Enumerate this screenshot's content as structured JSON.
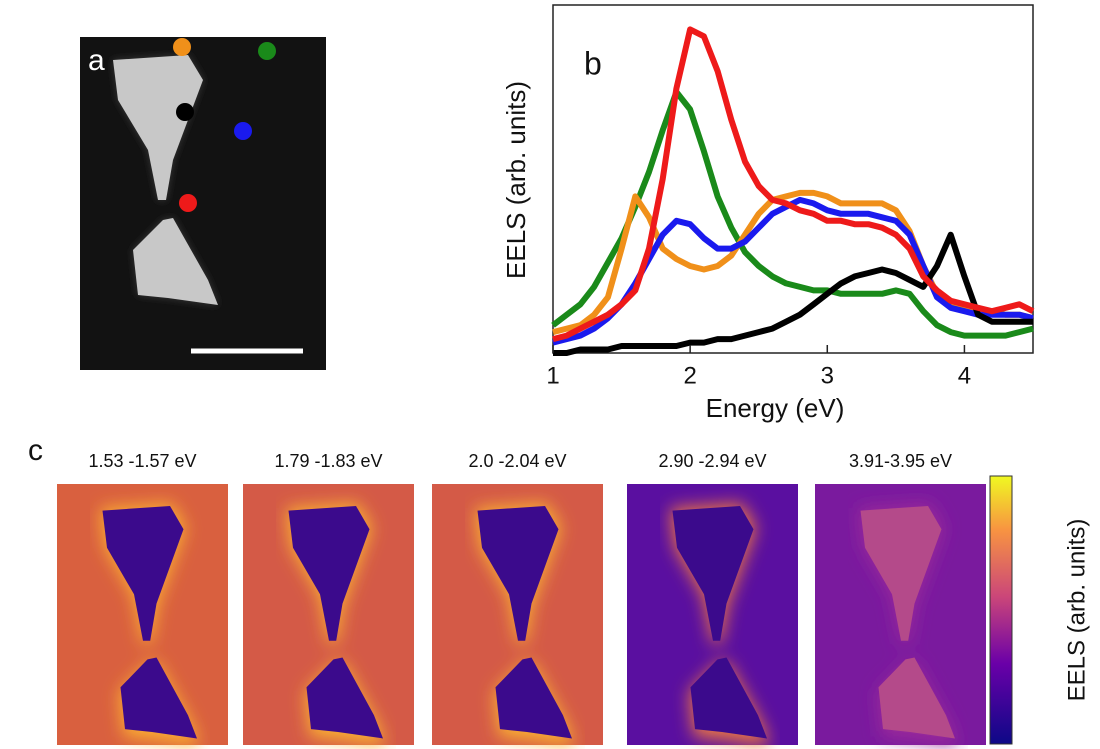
{
  "panel_labels": [
    "a",
    "b",
    "c"
  ],
  "maps": {
    "titles": [
      "1.53 -1.57 eV",
      "1.79 -1.83 eV",
      "2.0 -2.04 eV",
      "2.90 -2.94 eV",
      "3.91-3.95 eV"
    ],
    "colorbar_label": "EELS (arb. units)"
  },
  "chart_data": {
    "type": "line",
    "xlabel": "Energy (eV)",
    "ylabel": "EELS (arb. units)",
    "xlim": [
      1,
      4.5
    ],
    "xticks": [
      1,
      2,
      3,
      4
    ],
    "ylim": [
      0,
      1
    ],
    "x": [
      1,
      1.1,
      1.2,
      1.3,
      1.4,
      1.5,
      1.6,
      1.7,
      1.8,
      1.9,
      2,
      2.1,
      2.2,
      2.3,
      2.4,
      2.5,
      2.6,
      2.7,
      2.8,
      2.9,
      3,
      3.1,
      3.2,
      3.3,
      3.4,
      3.5,
      3.6,
      3.7,
      3.8,
      3.9,
      4,
      4.1,
      4.2,
      4.3,
      4.4,
      4.5
    ],
    "series": [
      {
        "color": "#1a8a1a",
        "values": [
          0.08,
          0.11,
          0.14,
          0.19,
          0.26,
          0.33,
          0.42,
          0.52,
          0.64,
          0.75,
          0.7,
          0.58,
          0.45,
          0.36,
          0.29,
          0.25,
          0.22,
          0.2,
          0.19,
          0.18,
          0.18,
          0.17,
          0.17,
          0.17,
          0.17,
          0.18,
          0.17,
          0.12,
          0.08,
          0.06,
          0.05,
          0.05,
          0.05,
          0.05,
          0.06,
          0.07
        ]
      },
      {
        "color": "#f0901a",
        "values": [
          0.06,
          0.07,
          0.08,
          0.11,
          0.16,
          0.3,
          0.45,
          0.39,
          0.3,
          0.27,
          0.25,
          0.24,
          0.25,
          0.28,
          0.34,
          0.4,
          0.44,
          0.45,
          0.46,
          0.46,
          0.45,
          0.43,
          0.43,
          0.43,
          0.43,
          0.41,
          0.35,
          0.25,
          0.17,
          0.14,
          0.13,
          0.12,
          0.12,
          0.11,
          0.11,
          0.1
        ]
      },
      {
        "color": "#1a1aee",
        "values": [
          0.03,
          0.04,
          0.05,
          0.07,
          0.1,
          0.14,
          0.2,
          0.27,
          0.34,
          0.38,
          0.37,
          0.33,
          0.3,
          0.3,
          0.32,
          0.36,
          0.4,
          0.42,
          0.44,
          0.43,
          0.41,
          0.4,
          0.4,
          0.4,
          0.39,
          0.38,
          0.34,
          0.25,
          0.16,
          0.13,
          0.12,
          0.11,
          0.11,
          0.11,
          0.11,
          0.1
        ]
      },
      {
        "color": "#000000",
        "values": [
          0.0,
          0.0,
          0.01,
          0.01,
          0.01,
          0.02,
          0.02,
          0.02,
          0.02,
          0.02,
          0.03,
          0.03,
          0.04,
          0.04,
          0.05,
          0.06,
          0.07,
          0.09,
          0.11,
          0.14,
          0.17,
          0.2,
          0.22,
          0.23,
          0.24,
          0.23,
          0.21,
          0.19,
          0.25,
          0.34,
          0.22,
          0.11,
          0.09,
          0.09,
          0.09,
          0.09
        ]
      },
      {
        "color": "#ee1a1a",
        "values": [
          0.04,
          0.05,
          0.07,
          0.09,
          0.11,
          0.14,
          0.18,
          0.3,
          0.5,
          0.76,
          0.93,
          0.91,
          0.81,
          0.67,
          0.55,
          0.48,
          0.44,
          0.43,
          0.41,
          0.4,
          0.38,
          0.38,
          0.37,
          0.37,
          0.36,
          0.34,
          0.3,
          0.22,
          0.18,
          0.15,
          0.14,
          0.13,
          0.12,
          0.13,
          0.14,
          0.12
        ]
      }
    ]
  }
}
